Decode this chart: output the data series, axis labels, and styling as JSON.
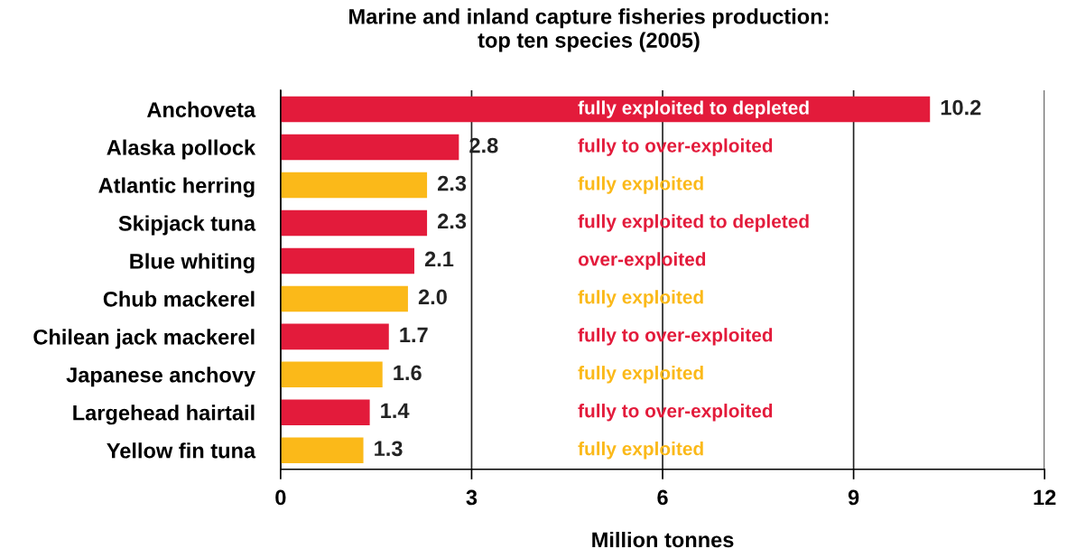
{
  "chart_data": {
    "type": "bar",
    "orientation": "horizontal",
    "title": "Marine and inland capture fisheries production:\ntop ten species (2005)",
    "xlabel": "Million tonnes",
    "categories": [
      "Anchoveta",
      "Alaska pollock",
      "Atlantic herring",
      "Skipjack tuna",
      "Blue whiting",
      "Chub mackerel",
      "Chilean jack mackerel",
      "Japanese anchovy",
      "Largehead hairtail",
      "Yellow fin tuna"
    ],
    "values": [
      10.2,
      2.8,
      2.3,
      2.3,
      2.1,
      2.0,
      1.7,
      1.6,
      1.4,
      1.3
    ],
    "colors": [
      "#e31b3b",
      "#e31b3b",
      "#fbb919",
      "#e31b3b",
      "#e31b3b",
      "#fbb919",
      "#e31b3b",
      "#fbb919",
      "#e31b3b",
      "#fbb919"
    ],
    "value_labels": [
      "10.2",
      "2.8",
      "2.3",
      "2.3",
      "2.1",
      "2.0",
      "1.7",
      "1.6",
      "1.4",
      "1.3"
    ],
    "xlim": [
      0,
      12
    ],
    "xticks": [
      0,
      3,
      6,
      9,
      12
    ],
    "grid": "x",
    "annotations": [
      "fully exploited to depleted",
      "fully to over-exploited",
      "fully exploited",
      "fully exploited to depleted",
      "over-exploited",
      "fully exploited",
      "fully to over-exploited",
      "fully exploited",
      "fully to over-exploited",
      "fully exploited"
    ]
  }
}
